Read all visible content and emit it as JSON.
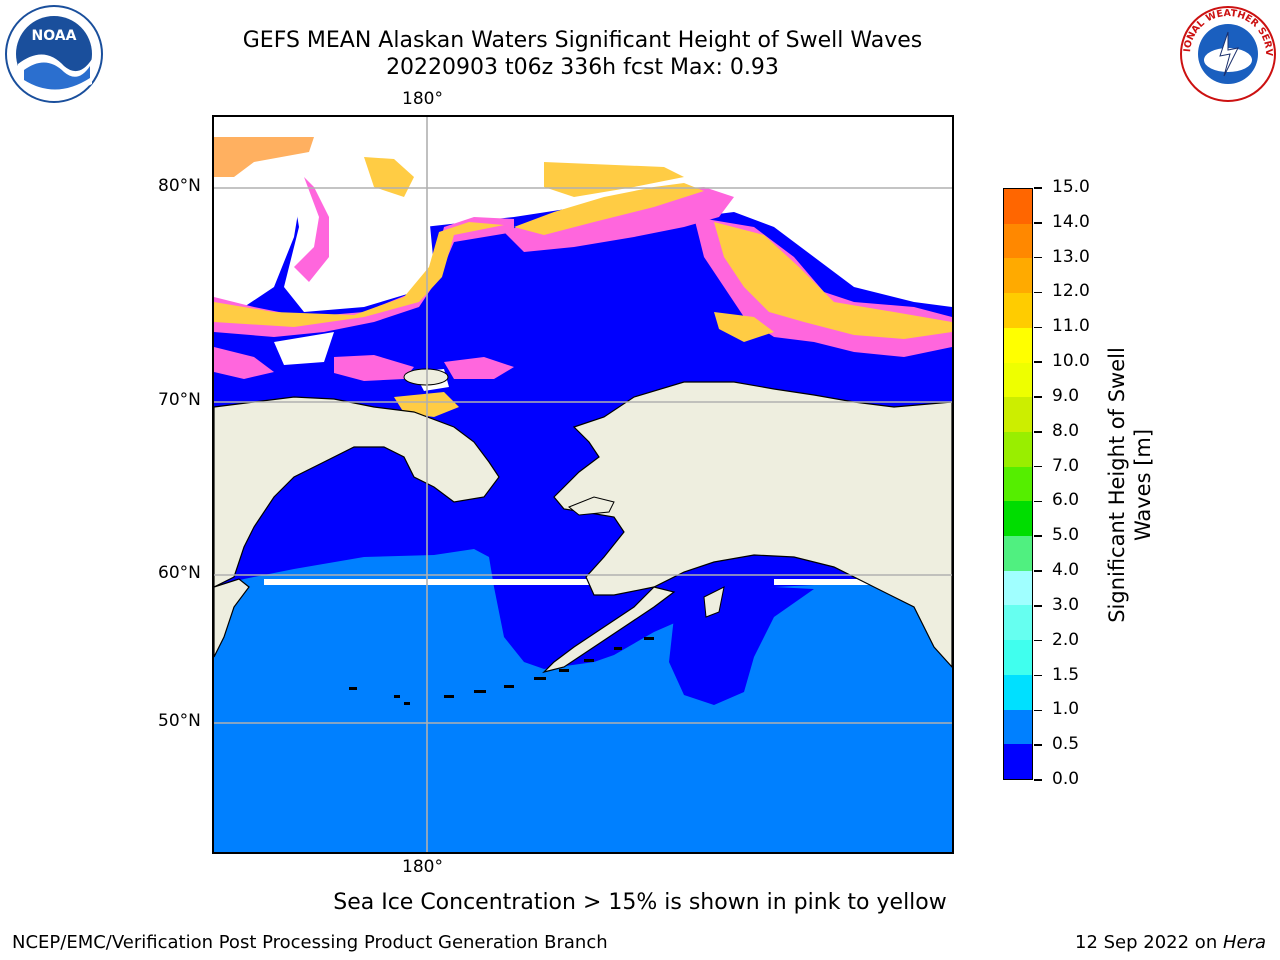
{
  "header": {
    "title_line1": "GEFS MEAN Alaskan Waters Significant Height of Swell Waves",
    "title_line2": "20220903 t06z 336h fcst   Max: 0.93"
  },
  "logos": {
    "left": "NOAA",
    "right": "NATIONAL WEATHER SERVICE"
  },
  "map": {
    "lon_label_top": "180°",
    "lon_label_bottom": "180°",
    "lat_labels": [
      "80°N",
      "70°N",
      "60°N",
      "50°N"
    ],
    "colors": {
      "ocean_low": "#0000ff",
      "ocean_mid": "#0080ff",
      "land": "#eeeedf",
      "ice_pink": "#ff66dd",
      "ice_yellow": "#ffcc44",
      "gridline": "#b0b0b0"
    }
  },
  "colorbar": {
    "title_line1": "Significant Height of Swell",
    "title_line2": "Waves [m]",
    "labels": [
      "15.0",
      "14.0",
      "13.0",
      "12.0",
      "11.0",
      "10.0",
      "9.0",
      "8.0",
      "7.0",
      "6.0",
      "5.0",
      "4.0",
      "3.0",
      "2.0",
      "1.5",
      "1.0",
      "0.5",
      "0.0"
    ],
    "colors": [
      "#0000ff",
      "#0080ff",
      "#00e0ff",
      "#40ffee",
      "#66fff0",
      "#a0ffff",
      "#50f080",
      "#00dd00",
      "#55ee00",
      "#99ee00",
      "#ccee00",
      "#eeff00",
      "#ffff00",
      "#ffcc00",
      "#ffaa00",
      "#ff8800",
      "#ff6600",
      "#ff3300",
      "#ff0000"
    ]
  },
  "footer": {
    "note": "Sea Ice Concentration > 15% is shown in pink to yellow",
    "left": "NCEP/EMC/Verification Post Processing Product Generation Branch",
    "right_prefix": "12 Sep 2022 on ",
    "right_host": "Hera"
  }
}
